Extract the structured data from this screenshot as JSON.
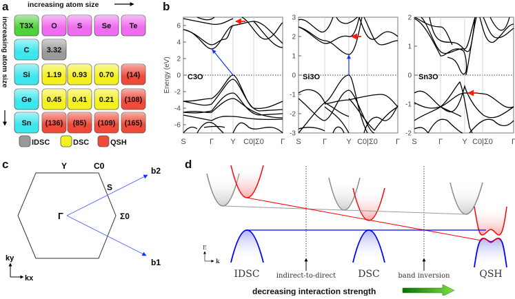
{
  "panels": {
    "a": "a",
    "b": "b",
    "c": "c",
    "d": "d"
  },
  "panel_a": {
    "top_label": "increasing atom size",
    "side_label": "increasing atom size",
    "corner": "T3X",
    "columns": [
      "O",
      "S",
      "Se",
      "Te"
    ],
    "rows": [
      {
        "label": "C",
        "cells": [
          {
            "v": "3.32",
            "type": "IDSC"
          },
          null,
          null,
          null
        ]
      },
      {
        "label": "Si",
        "cells": [
          {
            "v": "1.19",
            "type": "DSC"
          },
          {
            "v": "0.93",
            "type": "DSC"
          },
          {
            "v": "0.70",
            "type": "DSC"
          },
          {
            "v": "(14)",
            "type": "QSH"
          }
        ]
      },
      {
        "label": "Ge",
        "cells": [
          {
            "v": "0.45",
            "type": "DSC"
          },
          {
            "v": "0.41",
            "type": "DSC"
          },
          {
            "v": "0.21",
            "type": "DSC"
          },
          {
            "v": "(108)",
            "type": "QSH"
          }
        ]
      },
      {
        "label": "Sn",
        "cells": [
          {
            "v": "(136)",
            "type": "QSH"
          },
          {
            "v": "(85)",
            "type": "QSH"
          },
          {
            "v": "(109)",
            "type": "QSH"
          },
          {
            "v": "(165)",
            "type": "QSH"
          }
        ]
      }
    ],
    "legend": [
      {
        "label": "IDSC",
        "color": "#9a9a9a"
      },
      {
        "label": "DSC",
        "color": "#f5f020"
      },
      {
        "label": "QSH",
        "color": "#ef4a3a"
      }
    ],
    "colors": {
      "corner": "#4fd23a",
      "column": "#f06cf0",
      "row": "#3ee6ee"
    }
  },
  "panel_b": {
    "ylabel": "Energy (eV)",
    "kpoints": [
      "S",
      "Γ",
      "Y",
      "C0|Σ0",
      "Γ"
    ],
    "plots": [
      {
        "material": "C3O",
        "ylim": [
          -7,
          7
        ],
        "yticks": [
          "6",
          "4",
          "2",
          "0",
          "-2",
          "-4",
          "-6"
        ],
        "ytick_values": [
          6,
          4,
          2,
          0,
          -2,
          -4,
          -6
        ]
      },
      {
        "material": "Si3O",
        "ylim": [
          -3,
          3
        ],
        "yticks": [
          "3",
          "2",
          "1",
          "0",
          "-1",
          "-2",
          "-3"
        ],
        "ytick_values": [
          3,
          2,
          1,
          0,
          -1,
          -2,
          -3
        ]
      },
      {
        "material": "Sn3O",
        "ylim": [
          -2,
          2
        ],
        "yticks": [
          "2",
          "1",
          "0",
          "-1",
          "-2"
        ],
        "ytick_values": [
          2,
          1,
          0,
          -1,
          -2
        ]
      }
    ]
  },
  "panel_c": {
    "points": {
      "gamma": "Γ",
      "y": "Y",
      "c0": "C0",
      "s": "S",
      "sigma0": "Σ0"
    },
    "vectors": {
      "b1": "b1",
      "b2": "b2"
    },
    "axes": {
      "kx": "kx",
      "ky": "ky"
    }
  },
  "panel_d": {
    "phases": [
      "IDSC",
      "DSC",
      "QSH"
    ],
    "transitions": [
      "indirect-to-direct",
      "band inversion"
    ],
    "axes": {
      "e": "E",
      "k": "k"
    },
    "bottom_label": "decreasing interaction strength"
  }
}
